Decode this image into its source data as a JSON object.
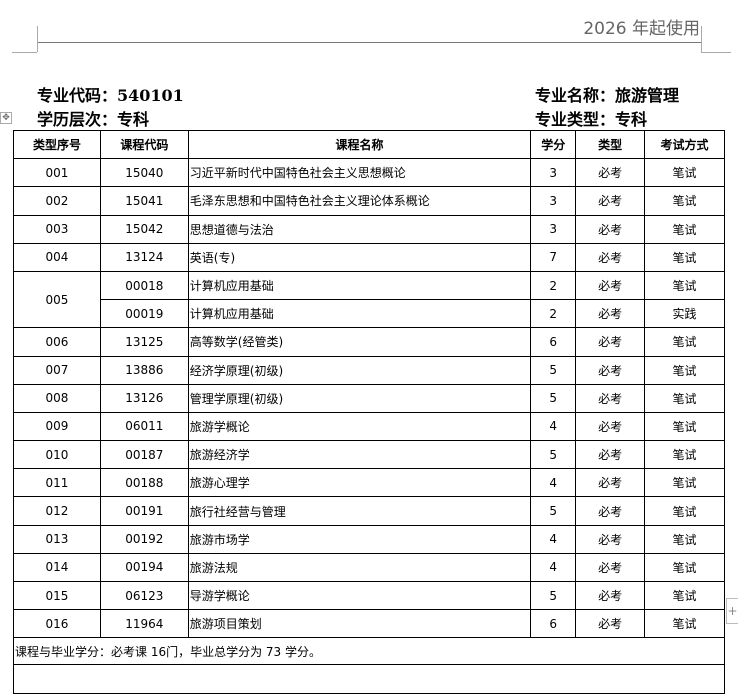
{
  "header": {
    "note": "2026 年起使用"
  },
  "meta": {
    "major_code": "专业代码：540101",
    "major_name": "专业名称：旅游管理",
    "level": "学历层次：专科",
    "major_type": "专业类型：专科"
  },
  "table": {
    "columns": [
      "类型序号",
      "课程代码",
      "课程名称",
      "学分",
      "类型",
      "考试方式"
    ],
    "rows": [
      {
        "seq": "001",
        "code": "15040",
        "name": "习近平新时代中国特色社会主义思想概论",
        "credit": "3",
        "type": "必考",
        "exam": "笔试"
      },
      {
        "seq": "002",
        "code": "15041",
        "name": "毛泽东思想和中国特色社会主义理论体系概论",
        "credit": "3",
        "type": "必考",
        "exam": "笔试"
      },
      {
        "seq": "003",
        "code": "15042",
        "name": "思想道德与法治",
        "credit": "3",
        "type": "必考",
        "exam": "笔试"
      },
      {
        "seq": "004",
        "code": "13124",
        "name": "英语(专)",
        "credit": "7",
        "type": "必考",
        "exam": "笔试"
      },
      {
        "seq": "005",
        "code": "00018",
        "name": "计算机应用基础",
        "credit": "2",
        "type": "必考",
        "exam": "笔试"
      },
      {
        "seq": "",
        "code": "00019",
        "name": "计算机应用基础",
        "credit": "2",
        "type": "必考",
        "exam": "实践"
      },
      {
        "seq": "006",
        "code": "13125",
        "name": "高等数学(经管类)",
        "credit": "6",
        "type": "必考",
        "exam": "笔试"
      },
      {
        "seq": "007",
        "code": "13886",
        "name": "经济学原理(初级)",
        "credit": "5",
        "type": "必考",
        "exam": "笔试"
      },
      {
        "seq": "008",
        "code": "13126",
        "name": "管理学原理(初级)",
        "credit": "5",
        "type": "必考",
        "exam": "笔试"
      },
      {
        "seq": "009",
        "code": "06011",
        "name": "旅游学概论",
        "credit": "4",
        "type": "必考",
        "exam": "笔试"
      },
      {
        "seq": "010",
        "code": "00187",
        "name": "旅游经济学",
        "credit": "5",
        "type": "必考",
        "exam": "笔试"
      },
      {
        "seq": "011",
        "code": "00188",
        "name": "旅游心理学",
        "credit": "4",
        "type": "必考",
        "exam": "笔试"
      },
      {
        "seq": "012",
        "code": "00191",
        "name": "旅行社经营与管理",
        "credit": "5",
        "type": "必考",
        "exam": "笔试"
      },
      {
        "seq": "013",
        "code": "00192",
        "name": "旅游市场学",
        "credit": "4",
        "type": "必考",
        "exam": "笔试"
      },
      {
        "seq": "014",
        "code": "00194",
        "name": "旅游法规",
        "credit": "4",
        "type": "必考",
        "exam": "笔试"
      },
      {
        "seq": "015",
        "code": "06123",
        "name": "导游学概论",
        "credit": "5",
        "type": "必考",
        "exam": "笔试"
      },
      {
        "seq": "016",
        "code": "11964",
        "name": "旅游项目策划",
        "credit": "6",
        "type": "必考",
        "exam": "笔试"
      }
    ],
    "footer": "课程与毕业学分：必考课 16门，毕业总学分为 73 学分。"
  },
  "controls": {
    "add_row": "+",
    "move": "✥"
  }
}
